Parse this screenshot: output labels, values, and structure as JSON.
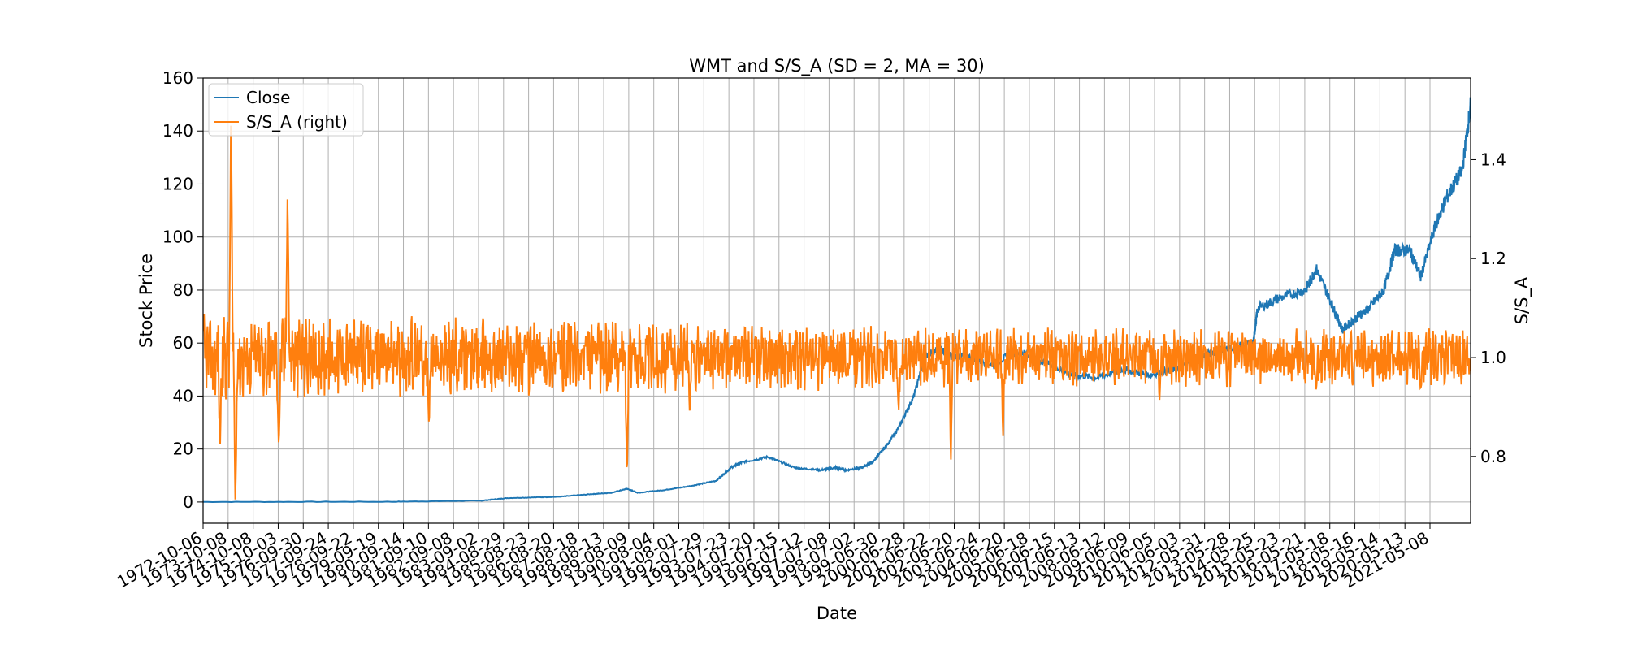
{
  "chart_data": {
    "type": "line",
    "title": "WMT and S/S_A (SD = 2, MA = 30)",
    "xlabel": "Date",
    "ylabel": "Stock Price",
    "ylabel_right": "S/S_A",
    "grid": true,
    "legend_position": "top-left",
    "x_range": [
      "1972-10-06",
      "2021-04-30"
    ],
    "ylim": [
      -8,
      160
    ],
    "ylim_right": [
      0.665,
      1.565
    ],
    "x_tick_labels": [
      "1972-10-06",
      "1973-10-08",
      "1974-10-08",
      "1975-10-03",
      "1976-09-30",
      "1977-09-24",
      "1978-09-22",
      "1979-09-19",
      "1980-09-14",
      "1981-09-10",
      "1982-09-08",
      "1983-09-02",
      "1984-08-29",
      "1985-08-23",
      "1986-08-20",
      "1987-08-18",
      "1988-08-13",
      "1989-08-09",
      "1990-08-04",
      "1991-08-01",
      "1992-07-29",
      "1993-07-23",
      "1994-07-20",
      "1995-07-15",
      "1996-07-12",
      "1997-07-08",
      "1998-07-02",
      "1999-06-30",
      "2000-06-28",
      "2001-06-22",
      "2002-06-20",
      "2003-06-24",
      "2004-06-20",
      "2005-06-18",
      "2006-06-15",
      "2007-06-13",
      "2008-06-12",
      "2009-06-09",
      "2010-06-05",
      "2011-06-03",
      "2012-05-31",
      "2013-05-28",
      "2014-05-25",
      "2015-05-23",
      "2016-05-21",
      "2017-05-18",
      "2018-05-16",
      "2019-05-14",
      "2020-05-13",
      "2021-05-08"
    ],
    "y_ticks": [
      0,
      20,
      40,
      60,
      80,
      100,
      120,
      140,
      160
    ],
    "y_ticks_right": [
      0.8,
      1.0,
      1.2,
      1.4
    ],
    "series": [
      {
        "name": "Close",
        "axis": "left",
        "color": "#1f77b4",
        "x": [
          "1972-10-06",
          "1980-01-01",
          "1983-06-01",
          "1984-06-01",
          "1986-06-01",
          "1987-09-01",
          "1988-06-01",
          "1989-01-01",
          "1989-06-01",
          "1990-06-01",
          "1991-06-01",
          "1992-06-01",
          "1993-01-01",
          "1993-06-01",
          "1994-06-01",
          "1995-06-01",
          "1996-06-01",
          "1997-01-01",
          "1997-06-01",
          "1998-01-01",
          "1998-06-01",
          "1999-01-01",
          "1999-06-01",
          "2000-01-01",
          "2000-06-01",
          "2001-01-01",
          "2001-06-01",
          "2002-01-01",
          "2003-01-01",
          "2004-01-01",
          "2005-01-01",
          "2006-01-01",
          "2007-01-01",
          "2008-01-01",
          "2009-01-01",
          "2010-01-01",
          "2011-01-01",
          "2012-01-01",
          "2013-01-01",
          "2013-03-01",
          "2014-01-01",
          "2015-01-01",
          "2015-06-01",
          "2016-01-01",
          "2016-06-01",
          "2017-01-01",
          "2017-06-01",
          "2018-01-01",
          "2018-06-01",
          "2019-01-01",
          "2019-06-01",
          "2020-01-01",
          "2020-06-01",
          "2021-01-01",
          "2021-04-30"
        ],
        "values": [
          0.05,
          0.1,
          0.5,
          1.5,
          2,
          3,
          3.5,
          5,
          3.5,
          4.5,
          6,
          8,
          13,
          15,
          17,
          13,
          12,
          13,
          12,
          13,
          15,
          22,
          28,
          40,
          55,
          58,
          55,
          55,
          52,
          57,
          53,
          48,
          47,
          50,
          48,
          50,
          55,
          58,
          60,
          73,
          77,
          80,
          88,
          75,
          65,
          70,
          73,
          80,
          95,
          95,
          85,
          105,
          115,
          125,
          150
        ]
      },
      {
        "name": "S/S_A (right)",
        "axis": "right",
        "color": "#ff7f0e",
        "baseline": 1.0,
        "extremes": [
          {
            "x": "1973-06-01",
            "value": 0.82
          },
          {
            "x": "1973-11-01",
            "value": 1.51
          },
          {
            "x": "1974-01-01",
            "value": 0.69
          },
          {
            "x": "1975-09-01",
            "value": 0.81
          },
          {
            "x": "1976-01-01",
            "value": 1.35
          },
          {
            "x": "1981-06-01",
            "value": 0.86
          },
          {
            "x": "1989-01-01",
            "value": 0.75
          },
          {
            "x": "1991-06-01",
            "value": 0.88
          },
          {
            "x": "1999-06-01",
            "value": 0.89
          },
          {
            "x": "2001-06-01",
            "value": 0.79
          },
          {
            "x": "2003-06-01",
            "value": 0.84
          },
          {
            "x": "2009-06-01",
            "value": 0.91
          },
          {
            "x": "2015-06-01",
            "value": 0.93
          },
          {
            "x": "2019-06-01",
            "value": 0.93
          }
        ]
      }
    ]
  }
}
